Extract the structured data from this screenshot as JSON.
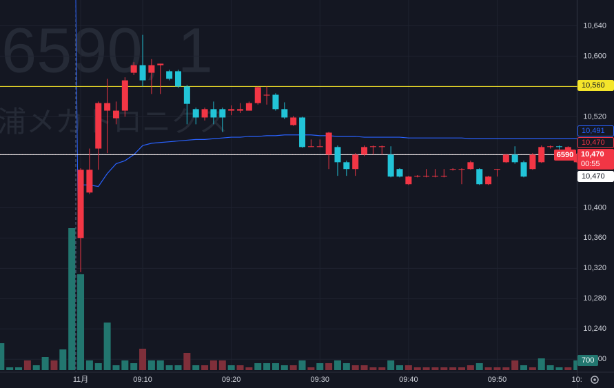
{
  "chart_data": {
    "type": "candlestick",
    "watermark": [
      "6590, 1",
      "浦メカトロニクス"
    ],
    "categories": [
      null,
      null,
      null,
      null,
      null,
      null,
      null,
      null,
      null,
      "11月",
      null,
      null,
      null,
      null,
      null,
      null,
      "09:10",
      null,
      null,
      null,
      null,
      null,
      null,
      null,
      null,
      null,
      "09:20",
      null,
      null,
      null,
      null,
      null,
      null,
      null,
      null,
      null,
      "09:30",
      null,
      null,
      null,
      null,
      null,
      null,
      null,
      null,
      null,
      "09:40",
      null,
      null,
      null,
      null,
      null,
      null,
      null,
      null,
      null,
      "09:50",
      null,
      null,
      null,
      null,
      null,
      null,
      null,
      null,
      "10:"
    ],
    "open": [
      null,
      null,
      null,
      null,
      null,
      null,
      null,
      null,
      null,
      10360,
      10420,
      10478,
      10528,
      10518,
      10528,
      10578,
      10588,
      10578,
      10588,
      10580,
      10580,
      10560,
      10530,
      10519,
      10530,
      10530,
      10528,
      10528,
      10528,
      10538,
      10548,
      10549,
      10530,
      10509,
      10519,
      10480,
      10480,
      10470,
      10480,
      10460,
      10451,
      10470,
      10480,
      10480,
      10470,
      10451,
      10431,
      10441,
      10441,
      10441,
      10441,
      10450,
      10450,
      10451,
      10451,
      10431,
      10450,
      10460,
      10470,
      10460,
      10451,
      10460,
      10480,
      10481,
      10470,
      10460
    ],
    "high": [
      null,
      null,
      null,
      null,
      null,
      null,
      null,
      null,
      null,
      10452,
      10478,
      10540,
      10570,
      10540,
      10572,
      10592,
      10628,
      10596,
      10590,
      10582,
      10582,
      10562,
      10532,
      10532,
      10540,
      10532,
      10535,
      10538,
      10540,
      10560,
      10560,
      10551,
      10539,
      10521,
      10520,
      10490,
      10490,
      10500,
      10482,
      10462,
      10472,
      10482,
      10482,
      10482,
      10481,
      10452,
      10442,
      10443,
      10451,
      10451,
      10451,
      10452,
      10452,
      10462,
      10452,
      10442,
      10451,
      10471,
      10481,
      10462,
      10472,
      10482,
      10482,
      10482,
      10481,
      10472
    ],
    "low": [
      null,
      null,
      null,
      null,
      null,
      null,
      null,
      null,
      null,
      10315,
      10418,
      10450,
      10472,
      10510,
      10520,
      10575,
      10560,
      10550,
      10550,
      10568,
      10558,
      10510,
      10510,
      10515,
      10510,
      10500,
      10522,
      10525,
      10528,
      10536,
      10536,
      10528,
      10517,
      10508,
      10479,
      10480,
      10480,
      10451,
      10442,
      10442,
      10442,
      10468,
      10470,
      10470,
      10440,
      10440,
      10430,
      10440,
      10440,
      10440,
      10440,
      10449,
      10431,
      10450,
      10430,
      10430,
      10441,
      10459,
      10458,
      10440,
      10450,
      10459,
      10478,
      10470,
      10469,
      10459
    ],
    "close": [
      null,
      null,
      null,
      null,
      null,
      null,
      null,
      null,
      null,
      10450,
      10450,
      10538,
      10538,
      10528,
      10568,
      10588,
      10568,
      10588,
      10590,
      10570,
      10560,
      10537,
      10519,
      10530,
      10519,
      10519,
      10530,
      10530,
      10538,
      10559,
      10549,
      10530,
      10519,
      10519,
      10480,
      10481,
      10481,
      10499,
      10460,
      10451,
      10470,
      10480,
      10481,
      10481,
      10441,
      10441,
      10441,
      10442,
      10442,
      10442,
      10442,
      10451,
      10451,
      10460,
      10431,
      10441,
      10451,
      10470,
      10460,
      10441,
      10470,
      10480,
      10481,
      10480,
      10480,
      10470
    ],
    "up_color": "#f23645",
    "down_color": "#22c4d8",
    "vwap": {
      "color": "#2962ff",
      "values": [
        null,
        null,
        null,
        null,
        null,
        null,
        null,
        null,
        null,
        10430,
        10430,
        10428,
        10445,
        10458,
        10462,
        10470,
        10482,
        10485,
        10486,
        10487,
        10488,
        10489,
        10490,
        10490,
        10491,
        10492,
        10493,
        10493,
        10494,
        10494,
        10495,
        10495,
        10496,
        10496,
        10496,
        10496,
        10495,
        10495,
        10494,
        10494,
        10494,
        10493,
        10493,
        10493,
        10493,
        10493,
        10492,
        10492,
        10492,
        10492,
        10492,
        10492,
        10492,
        10491,
        10491,
        10491,
        10491,
        10491,
        10491,
        10491,
        10491,
        10491,
        10491,
        10491,
        10491,
        10491
      ]
    },
    "volume": {
      "values": [
        1950,
        200,
        200,
        700,
        350,
        950,
        700,
        1500,
        10300,
        6950,
        700,
        500,
        3450,
        350,
        700,
        500,
        1550,
        700,
        700,
        350,
        350,
        1250,
        350,
        350,
        700,
        700,
        350,
        350,
        200,
        500,
        500,
        500,
        350,
        350,
        700,
        200,
        500,
        500,
        700,
        500,
        350,
        350,
        200,
        200,
        700,
        350,
        350,
        200,
        200,
        200,
        200,
        200,
        200,
        350,
        500,
        200,
        200,
        200,
        700,
        350,
        200,
        850,
        350,
        200,
        200,
        700
      ],
      "colors": [
        "#22766f",
        "#22766f",
        "#22766f",
        "#7f2f3a",
        "#22766f",
        "#22766f",
        "#7f2f3a",
        "#22766f",
        "#22766f",
        "#22766f",
        "#22766f",
        "#22766f",
        "#22766f",
        "#22766f",
        "#22766f",
        "#22766f",
        "#7f2f3a",
        "#22766f",
        "#22766f",
        "#22766f",
        "#22766f",
        "#7f2f3a",
        "#22766f",
        "#7f2f3a",
        "#7f2f3a",
        "#7f2f3a",
        "#22766f",
        "#7f2f3a",
        "#7f2f3a",
        "#22766f",
        "#22766f",
        "#22766f",
        "#22766f",
        "#7f2f3a",
        "#22766f",
        "#7f2f3a",
        "#22766f",
        "#7f2f3a",
        "#22766f",
        "#22766f",
        "#7f2f3a",
        "#7f2f3a",
        "#7f2f3a",
        "#7f2f3a",
        "#22766f",
        "#22766f",
        "#7f2f3a",
        "#7f2f3a",
        "#7f2f3a",
        "#7f2f3a",
        "#7f2f3a",
        "#7f2f3a",
        "#7f2f3a",
        "#7f2f3a",
        "#22766f",
        "#7f2f3a",
        "#7f2f3a",
        "#7f2f3a",
        "#7f2f3a",
        "#22766f",
        "#7f2f3a",
        "#22766f",
        "#22766f",
        "#22766f",
        "#7f2f3a",
        "#22766f"
      ],
      "lim": [
        0,
        26850
      ],
      "tag": {
        "value": 700,
        "label": "700",
        "color": "#22766f"
      }
    },
    "ylim": [
      10183,
      10674
    ],
    "yticks": [
      {
        "value": 10200,
        "label": "10,200"
      },
      {
        "value": 10240,
        "label": "10,240"
      },
      {
        "value": 10280,
        "label": "10,280"
      },
      {
        "value": 10320,
        "label": "10,320"
      },
      {
        "value": 10360,
        "label": "10,360"
      },
      {
        "value": 10400,
        "label": "10,400"
      },
      {
        "value": 10520,
        "label": "10,520"
      },
      {
        "value": 10600,
        "label": "10,600"
      },
      {
        "value": 10640,
        "label": "10,640"
      }
    ],
    "grid": true,
    "price_tags": [
      {
        "value": 10560,
        "label": "10,560",
        "color": "#f5e52a",
        "style": "fill",
        "line": "solid"
      },
      {
        "value": 10491,
        "label": "10,491",
        "color": "#2962ff",
        "style": "outline"
      },
      {
        "value": 10470,
        "label": "10,470",
        "color": "#f23645",
        "style": "outline"
      },
      {
        "value": 10470,
        "label": "10,470",
        "color": "#f23645",
        "style": "fill",
        "symbol": "6590",
        "countdown": "00:55",
        "line": "dotted"
      },
      {
        "value": 10470,
        "label": "10,470",
        "color": "#ffffff",
        "style": "fill",
        "line": "solid"
      }
    ]
  }
}
